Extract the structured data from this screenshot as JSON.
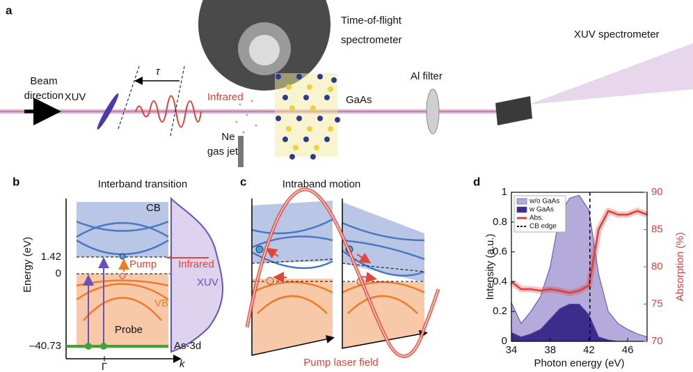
{
  "panel_a": {
    "label": "a",
    "beam_direction": [
      "Beam",
      "direction"
    ],
    "xuv": "XUV",
    "tau": "τ",
    "infrared": "Infrared",
    "gas_jet": [
      "Ne",
      "gas jet"
    ],
    "tof": [
      "Time-of-flight",
      "spectrometer"
    ],
    "sample": "GaAs",
    "filter": "Al filter",
    "spectrometer": "XUV spectrometer"
  },
  "panel_b": {
    "label": "b",
    "title": "Interband transition",
    "y_axis_label": "Energy (eV)",
    "energy_ticks": [
      "1.42",
      "0",
      "–40.73"
    ],
    "cb": "CB",
    "vb": "VB",
    "pump": "Pump",
    "probe": "Probe",
    "infrared": "Infrared",
    "xuv": "XUV",
    "core_level": "As-3d",
    "gamma": "Γ",
    "k": "k"
  },
  "panel_c": {
    "label": "c",
    "title": "Intraband motion",
    "field": "Pump laser field"
  },
  "chart_data": {
    "type": "area",
    "panel_label": "d",
    "x_label": "Photon energy (eV)",
    "y_label": "Intensity (a.u.)",
    "y2_label": "Absorption (%)",
    "x": [
      34,
      35,
      36,
      37,
      38,
      39,
      40,
      41,
      42,
      43,
      44,
      45,
      46,
      47,
      48
    ],
    "xlim": [
      34,
      48
    ],
    "xticks": [
      34,
      38,
      42,
      46
    ],
    "ylim": [
      0,
      1
    ],
    "yticks": [
      0,
      0.2,
      0.4,
      0.6,
      0.8,
      1
    ],
    "y2lim": [
      70,
      90
    ],
    "y2ticks": [
      70,
      75,
      80,
      85,
      90
    ],
    "series": [
      {
        "name": "w/o GaAs",
        "color": "#b4abda",
        "values": [
          0.26,
          0.12,
          0.2,
          0.3,
          0.5,
          0.85,
          0.96,
          0.98,
          0.88,
          0.45,
          0.2,
          0.12,
          0.08,
          0.05,
          0.03
        ]
      },
      {
        "name": "w GaAs",
        "color": "#3c2c8c",
        "values": [
          0.06,
          0.03,
          0.05,
          0.08,
          0.15,
          0.22,
          0.25,
          0.25,
          0.18,
          0.03,
          0.01,
          0,
          0,
          0,
          0
        ]
      },
      {
        "name": "Abs.",
        "color": "#d9403a",
        "axis": "y2",
        "values": [
          78,
          77,
          77,
          76.8,
          77,
          76.8,
          76.5,
          76.8,
          77.5,
          85,
          87.5,
          87,
          87,
          87.5,
          87
        ]
      },
      {
        "name": "CB edge",
        "color": "#000000",
        "style": "dashed-vline",
        "x": 42.1
      }
    ]
  }
}
